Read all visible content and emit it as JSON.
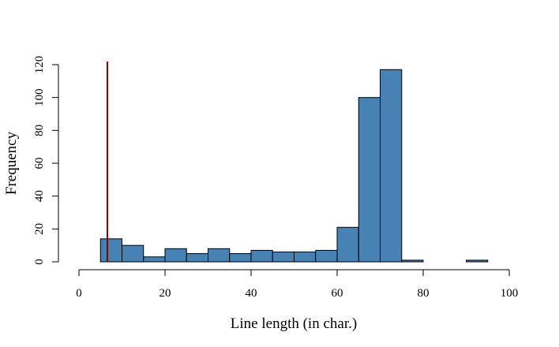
{
  "chart_data": {
    "type": "bar",
    "histogram": true,
    "bin_edges": [
      5,
      10,
      15,
      20,
      25,
      30,
      35,
      40,
      45,
      50,
      55,
      60,
      65,
      70,
      75,
      80,
      85,
      90,
      95
    ],
    "values": [
      14,
      10,
      3,
      8,
      5,
      8,
      5,
      7,
      6,
      6,
      7,
      21,
      100,
      117,
      1,
      0,
      0,
      1
    ],
    "title": "",
    "xlabel": "Line length (in char.)",
    "ylabel": "Frequency",
    "xlim": [
      0,
      100
    ],
    "ylim": [
      0,
      120
    ],
    "x_ticks": [
      0,
      20,
      40,
      60,
      80,
      100
    ],
    "y_ticks": [
      0,
      20,
      40,
      60,
      80,
      100,
      120
    ],
    "grid": false,
    "legend": "none",
    "bar_color": "#4682b4",
    "bar_edge_color": "#000000",
    "reference_line": {
      "x": 6.6,
      "color": "#8b0000"
    }
  }
}
